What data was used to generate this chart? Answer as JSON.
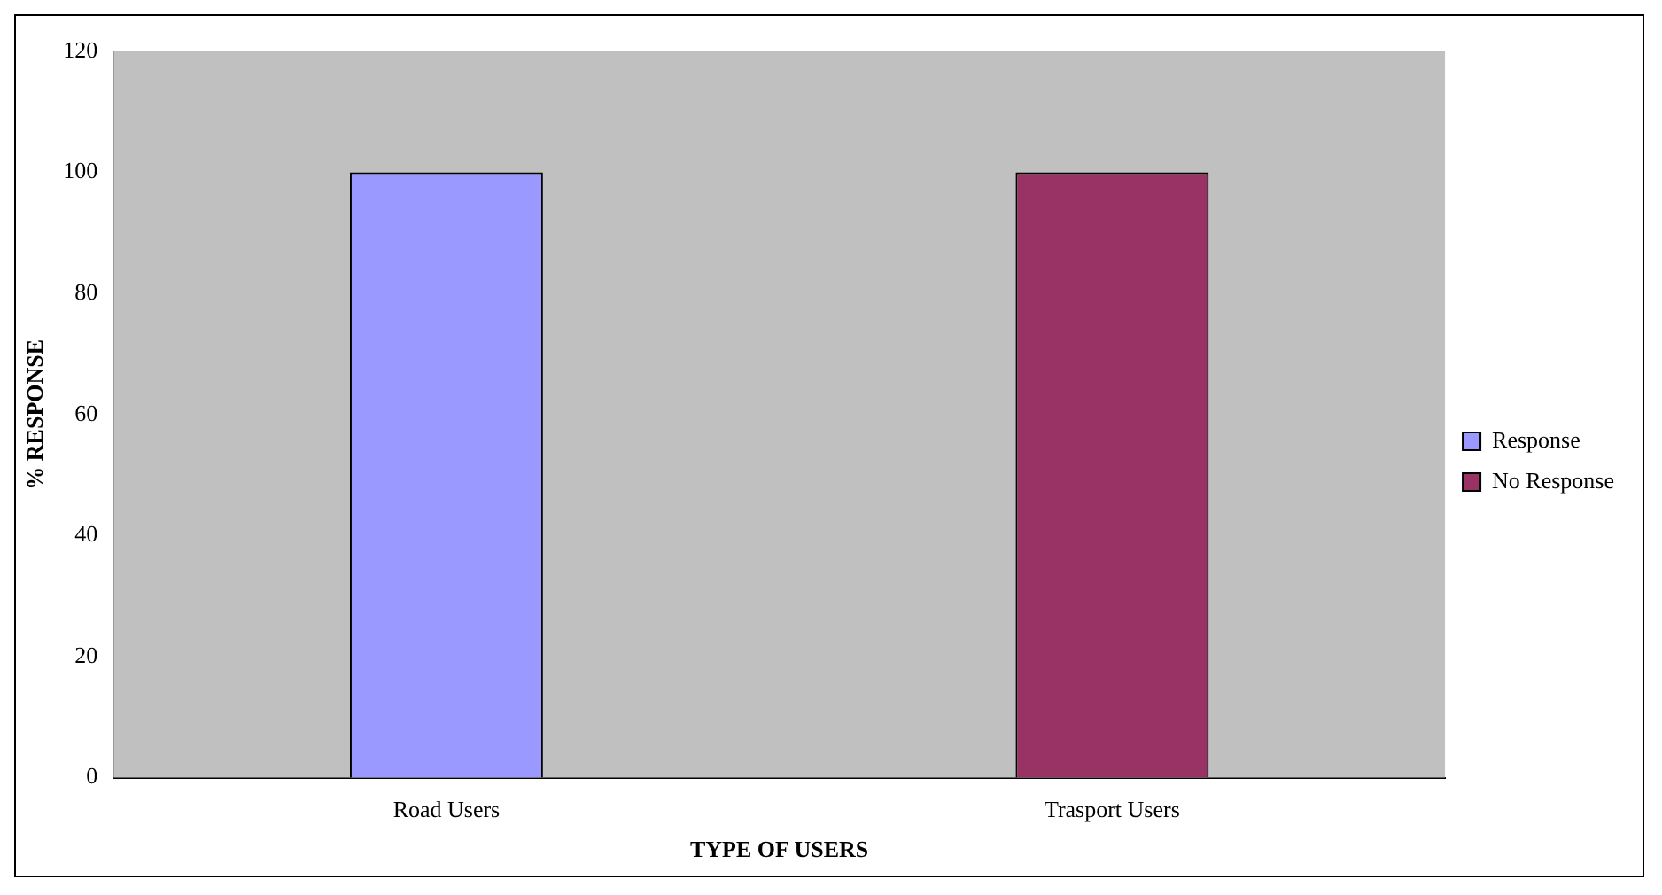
{
  "chart_data": {
    "type": "bar",
    "xlabel": "TYPE OF USERS",
    "ylabel": "% RESPONSE",
    "categories": [
      "Road Users",
      "Trasport Users"
    ],
    "stacked": true,
    "series": [
      {
        "name": "Response",
        "color": "#9999ff",
        "values": [
          100,
          0
        ]
      },
      {
        "name": "No Response",
        "color": "#993366",
        "values": [
          0,
          100
        ]
      }
    ],
    "ylim": [
      0,
      120
    ],
    "yticks": [
      0,
      20,
      40,
      60,
      80,
      100,
      120
    ],
    "grid": false,
    "legend": "right"
  }
}
